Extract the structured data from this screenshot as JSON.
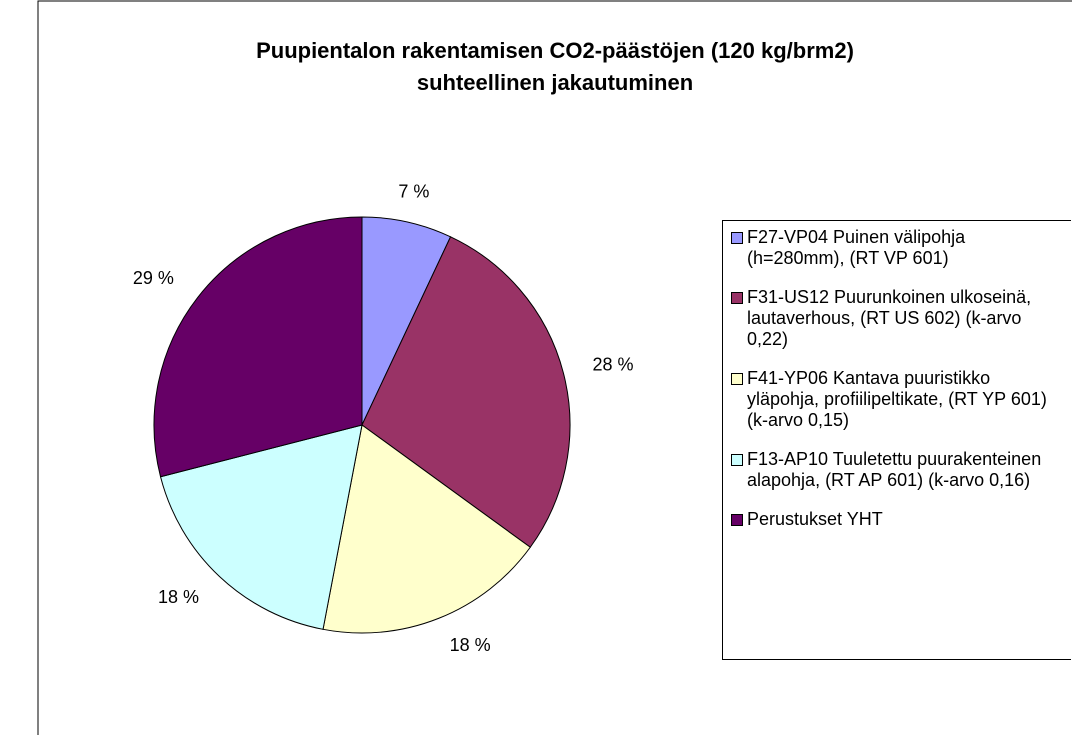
{
  "chart_data": {
    "type": "pie",
    "title": [
      "Puupientalon rakentamisen CO2-päästöjen (120 kg/brm2)",
      "suhteellinen jakautuminen"
    ],
    "categories": [
      "F27-VP04 Puinen välipohja (h=280mm), (RT VP 601)",
      "F31-US12 Puurunkoinen ulkoseinä, lautaverhous, (RT US 602) (k-arvo 0,22)",
      "F41-YP06 Kantava puuristikko yläpohja, profiilipeltikate, (RT YP 601) (k-arvo 0,15)",
      "F13-AP10 Tuuletettu puurakenteinen alapohja, (RT AP 601) (k-arvo 0,16)",
      "Perustukset YHT"
    ],
    "values": [
      7,
      28,
      18,
      18,
      29
    ],
    "value_labels": [
      "7 %",
      "28 %",
      "18 %",
      "18 %",
      "29 %"
    ],
    "colors": [
      "#9999ff",
      "#993366",
      "#ffffcc",
      "#ccffff",
      "#660066"
    ],
    "legend": "right"
  }
}
